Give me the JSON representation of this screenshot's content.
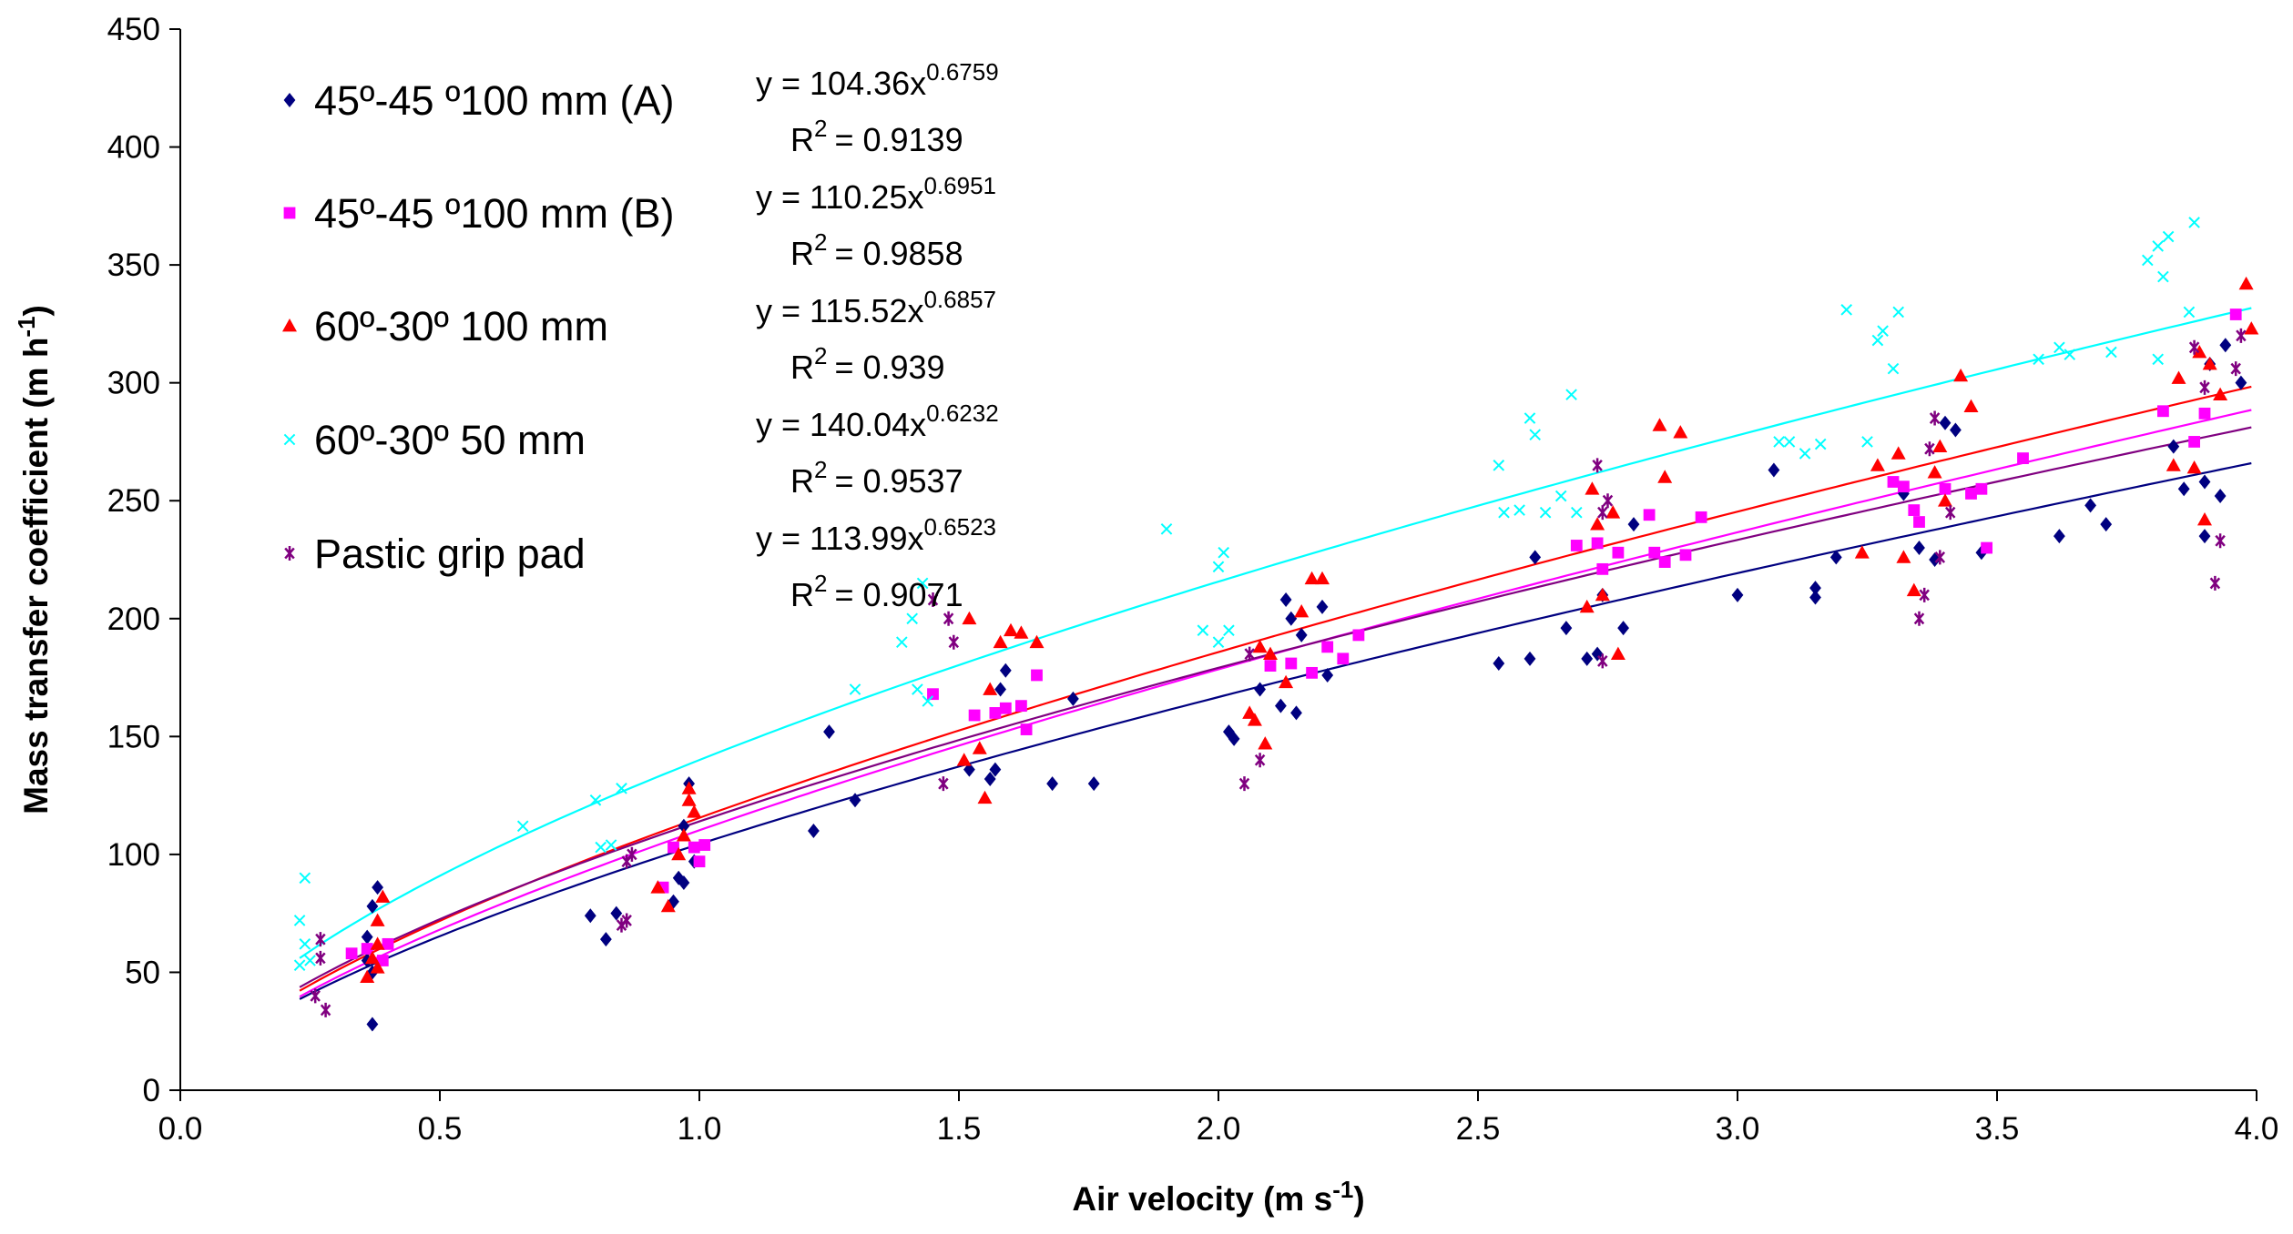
{
  "chart_data": {
    "type": "scatter",
    "xlabel": "Air velocity (m s",
    "xlabel_sup": "-1",
    "xlabel_end": ")",
    "ylabel": "Mass transfer coefficient (m h",
    "ylabel_sup": "-1",
    "ylabel_end": ")",
    "xlim": [
      0,
      4
    ],
    "ylim": [
      0,
      450
    ],
    "xticks": [
      "0.0",
      "0.5",
      "1.0",
      "1.5",
      "2.0",
      "2.5",
      "3.0",
      "3.5",
      "4.0"
    ],
    "yticks": [
      "0",
      "50",
      "100",
      "150",
      "200",
      "250",
      "300",
      "350",
      "400",
      "450"
    ],
    "grid": false,
    "legend_placement": "top-left",
    "series": [
      {
        "name": "45º-45 º100 mm (A)",
        "marker": "diamond",
        "color": "#000080",
        "trend": {
          "a": 104.36,
          "b": 0.6759,
          "eq_text": "y = 104.36x",
          "eq_exp": "0.6759",
          "r2_text": "R",
          "r2_val": "= 0.9139"
        },
        "points": [
          [
            0.37,
            28
          ],
          [
            0.37,
            50
          ],
          [
            0.36,
            65
          ],
          [
            0.37,
            78
          ],
          [
            0.38,
            86
          ],
          [
            0.36,
            55
          ],
          [
            0.79,
            74
          ],
          [
            0.82,
            64
          ],
          [
            0.84,
            75
          ],
          [
            0.95,
            80
          ],
          [
            0.96,
            90
          ],
          [
            0.97,
            88
          ],
          [
            0.98,
            130
          ],
          [
            0.97,
            112
          ],
          [
            0.99,
            97
          ],
          [
            1.22,
            110
          ],
          [
            1.25,
            152
          ],
          [
            1.3,
            123
          ],
          [
            1.52,
            136
          ],
          [
            1.56,
            132
          ],
          [
            1.57,
            136
          ],
          [
            1.58,
            170
          ],
          [
            1.59,
            178
          ],
          [
            1.68,
            130
          ],
          [
            1.72,
            166
          ],
          [
            1.76,
            130
          ],
          [
            2.02,
            152
          ],
          [
            2.03,
            149
          ],
          [
            2.08,
            170
          ],
          [
            2.12,
            163
          ],
          [
            2.13,
            208
          ],
          [
            2.14,
            200
          ],
          [
            2.15,
            160
          ],
          [
            2.16,
            193
          ],
          [
            2.2,
            205
          ],
          [
            2.21,
            176
          ],
          [
            2.54,
            181
          ],
          [
            2.6,
            183
          ],
          [
            2.61,
            226
          ],
          [
            2.67,
            196
          ],
          [
            2.71,
            183
          ],
          [
            2.73,
            185
          ],
          [
            2.74,
            210
          ],
          [
            2.78,
            196
          ],
          [
            2.8,
            240
          ],
          [
            3.0,
            210
          ],
          [
            3.07,
            263
          ],
          [
            3.15,
            213
          ],
          [
            3.15,
            209
          ],
          [
            3.19,
            226
          ],
          [
            3.32,
            253
          ],
          [
            3.35,
            230
          ],
          [
            3.38,
            225
          ],
          [
            3.4,
            283
          ],
          [
            3.42,
            280
          ],
          [
            3.47,
            228
          ],
          [
            3.62,
            235
          ],
          [
            3.68,
            248
          ],
          [
            3.71,
            240
          ],
          [
            3.84,
            273
          ],
          [
            3.86,
            255
          ],
          [
            3.9,
            235
          ],
          [
            3.9,
            258
          ],
          [
            3.93,
            252
          ],
          [
            3.94,
            316
          ],
          [
            3.97,
            300
          ],
          [
            3.91,
            308
          ]
        ]
      },
      {
        "name": "45º-45 º100 mm (B)",
        "marker": "square",
        "color": "#FF00FF",
        "trend": {
          "a": 110.25,
          "b": 0.6951,
          "eq_text": "y = 110.25x",
          "eq_exp": "0.6951",
          "r2_text": "R",
          "r2_val": "= 0.9858"
        },
        "points": [
          [
            0.33,
            58
          ],
          [
            0.36,
            60
          ],
          [
            0.39,
            55
          ],
          [
            0.4,
            62
          ],
          [
            0.93,
            86
          ],
          [
            0.95,
            103
          ],
          [
            0.99,
            103
          ],
          [
            1.0,
            97
          ],
          [
            1.01,
            104
          ],
          [
            1.45,
            168
          ],
          [
            1.53,
            159
          ],
          [
            1.57,
            160
          ],
          [
            1.59,
            162
          ],
          [
            1.62,
            163
          ],
          [
            1.63,
            153
          ],
          [
            1.65,
            176
          ],
          [
            2.1,
            180
          ],
          [
            2.14,
            181
          ],
          [
            2.18,
            177
          ],
          [
            2.21,
            188
          ],
          [
            2.24,
            183
          ],
          [
            2.27,
            193
          ],
          [
            2.69,
            231
          ],
          [
            2.73,
            232
          ],
          [
            2.74,
            221
          ],
          [
            2.77,
            228
          ],
          [
            2.83,
            244
          ],
          [
            2.84,
            228
          ],
          [
            2.86,
            224
          ],
          [
            2.9,
            227
          ],
          [
            2.93,
            243
          ],
          [
            3.3,
            258
          ],
          [
            3.32,
            256
          ],
          [
            3.34,
            246
          ],
          [
            3.35,
            241
          ],
          [
            3.4,
            255
          ],
          [
            3.45,
            253
          ],
          [
            3.47,
            255
          ],
          [
            3.48,
            230
          ],
          [
            3.55,
            268
          ],
          [
            3.82,
            288
          ],
          [
            3.88,
            275
          ],
          [
            3.9,
            287
          ],
          [
            3.96,
            329
          ]
        ]
      },
      {
        "name": "60º-30º 100 mm",
        "marker": "triangle",
        "color": "#FF0000",
        "trend": {
          "a": 115.52,
          "b": 0.6857,
          "eq_text": "y = 115.52x",
          "eq_exp": "0.6857",
          "r2_text": "R",
          "r2_val": "= 0.939"
        },
        "points": [
          [
            0.36,
            48
          ],
          [
            0.37,
            56
          ],
          [
            0.38,
            62
          ],
          [
            0.38,
            72
          ],
          [
            0.39,
            82
          ],
          [
            0.38,
            52
          ],
          [
            0.92,
            86
          ],
          [
            0.94,
            78
          ],
          [
            0.96,
            100
          ],
          [
            0.97,
            108
          ],
          [
            0.98,
            123
          ],
          [
            0.99,
            118
          ],
          [
            0.98,
            128
          ],
          [
            1.51,
            140
          ],
          [
            1.52,
            200
          ],
          [
            1.54,
            145
          ],
          [
            1.55,
            124
          ],
          [
            1.56,
            170
          ],
          [
            1.58,
            190
          ],
          [
            1.6,
            195
          ],
          [
            1.62,
            194
          ],
          [
            1.65,
            190
          ],
          [
            2.06,
            160
          ],
          [
            2.07,
            157
          ],
          [
            2.08,
            188
          ],
          [
            2.09,
            147
          ],
          [
            2.1,
            185
          ],
          [
            2.13,
            173
          ],
          [
            2.16,
            203
          ],
          [
            2.18,
            217
          ],
          [
            2.2,
            217
          ],
          [
            2.71,
            205
          ],
          [
            2.72,
            255
          ],
          [
            2.73,
            240
          ],
          [
            2.74,
            210
          ],
          [
            2.76,
            245
          ],
          [
            2.77,
            185
          ],
          [
            2.85,
            282
          ],
          [
            2.86,
            260
          ],
          [
            2.89,
            279
          ],
          [
            3.24,
            228
          ],
          [
            3.27,
            265
          ],
          [
            3.31,
            270
          ],
          [
            3.32,
            226
          ],
          [
            3.34,
            212
          ],
          [
            3.38,
            262
          ],
          [
            3.39,
            273
          ],
          [
            3.43,
            303
          ],
          [
            3.45,
            290
          ],
          [
            3.4,
            250
          ],
          [
            3.85,
            302
          ],
          [
            3.84,
            265
          ],
          [
            3.88,
            264
          ],
          [
            3.89,
            313
          ],
          [
            3.9,
            242
          ],
          [
            3.91,
            308
          ],
          [
            3.93,
            295
          ],
          [
            3.98,
            342
          ],
          [
            3.99,
            323
          ]
        ]
      },
      {
        "name": "60º-30º 50 mm",
        "marker": "x",
        "color": "#00FFFF",
        "trend": {
          "a": 140.04,
          "b": 0.6232,
          "eq_text": "y = 140.04x",
          "eq_exp": "0.6232",
          "r2_text": "R",
          "r2_val": "= 0.9537"
        },
        "points": [
          [
            0.24,
            90
          ],
          [
            0.23,
            72
          ],
          [
            0.24,
            62
          ],
          [
            0.23,
            53
          ],
          [
            0.25,
            55
          ],
          [
            0.66,
            112
          ],
          [
            0.81,
            103
          ],
          [
            0.83,
            104
          ],
          [
            0.85,
            128
          ],
          [
            0.8,
            123
          ],
          [
            1.3,
            170
          ],
          [
            1.39,
            190
          ],
          [
            1.41,
            200
          ],
          [
            1.43,
            215
          ],
          [
            1.42,
            170
          ],
          [
            1.44,
            165
          ],
          [
            1.9,
            238
          ],
          [
            1.97,
            195
          ],
          [
            2.0,
            222
          ],
          [
            2.01,
            228
          ],
          [
            2.0,
            190
          ],
          [
            2.02,
            195
          ],
          [
            2.54,
            265
          ],
          [
            2.55,
            245
          ],
          [
            2.58,
            246
          ],
          [
            2.6,
            285
          ],
          [
            2.61,
            278
          ],
          [
            2.63,
            245
          ],
          [
            2.66,
            252
          ],
          [
            2.68,
            295
          ],
          [
            2.69,
            245
          ],
          [
            3.21,
            331
          ],
          [
            3.25,
            275
          ],
          [
            3.27,
            318
          ],
          [
            3.28,
            322
          ],
          [
            3.3,
            306
          ],
          [
            3.31,
            330
          ],
          [
            3.08,
            275
          ],
          [
            3.1,
            275
          ],
          [
            3.13,
            270
          ],
          [
            3.16,
            274
          ],
          [
            3.58,
            310
          ],
          [
            3.62,
            315
          ],
          [
            3.64,
            312
          ],
          [
            3.72,
            313
          ],
          [
            3.79,
            352
          ],
          [
            3.81,
            358
          ],
          [
            3.82,
            345
          ],
          [
            3.83,
            362
          ],
          [
            3.87,
            330
          ],
          [
            3.88,
            368
          ],
          [
            3.81,
            310
          ]
        ]
      },
      {
        "name": "Pastic grip pad",
        "marker": "star",
        "color": "#800080",
        "trend": {
          "a": 113.99,
          "b": 0.6523,
          "eq_text": "y = 113.99x",
          "eq_exp": "0.6523",
          "r2_text": "R",
          "r2_val": "= 0.9071"
        },
        "points": [
          [
            0.27,
            64
          ],
          [
            0.27,
            56
          ],
          [
            0.26,
            40
          ],
          [
            0.28,
            34
          ],
          [
            0.86,
            97
          ],
          [
            0.87,
            100
          ],
          [
            0.85,
            70
          ],
          [
            0.86,
            72
          ],
          [
            1.47,
            130
          ],
          [
            1.48,
            200
          ],
          [
            1.49,
            190
          ],
          [
            1.45,
            208
          ],
          [
            2.05,
            130
          ],
          [
            2.06,
            185
          ],
          [
            2.08,
            140
          ],
          [
            2.74,
            182
          ],
          [
            2.73,
            265
          ],
          [
            2.75,
            250
          ],
          [
            2.74,
            245
          ],
          [
            3.35,
            200
          ],
          [
            3.36,
            210
          ],
          [
            3.37,
            272
          ],
          [
            3.38,
            285
          ],
          [
            3.39,
            226
          ],
          [
            3.41,
            245
          ],
          [
            3.92,
            215
          ],
          [
            3.93,
            233
          ],
          [
            3.96,
            306
          ],
          [
            3.9,
            298
          ],
          [
            3.88,
            315
          ],
          [
            3.97,
            320
          ]
        ]
      }
    ]
  }
}
